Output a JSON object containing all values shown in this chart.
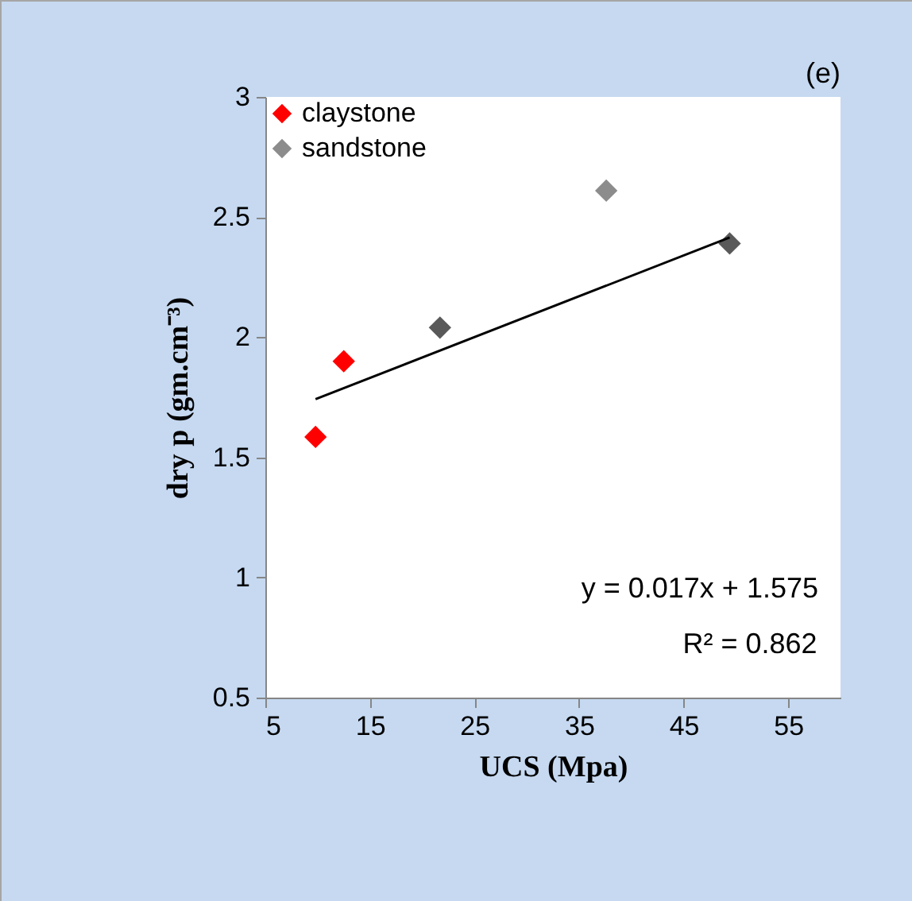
{
  "chart_data": {
    "type": "scatter",
    "xlabel": "UCS (Mpa)",
    "ylabel": "dry p (gm.cm⁻³)",
    "xlim": [
      5,
      60
    ],
    "xticks": [
      5,
      15,
      25,
      35,
      45,
      55
    ],
    "ylim": [
      0.5,
      3
    ],
    "yticks": [
      0.5,
      1,
      1.5,
      2,
      2.5,
      3
    ],
    "grid": false,
    "legend": "top left",
    "marker": "diamond",
    "annotations": [
      "(e)",
      "y = 0.017x + 1.575",
      "R² = 0.862"
    ],
    "series": [
      {
        "name": "claystone",
        "color": "#ff0000",
        "x": [
          9.8,
          12.5
        ],
        "values": [
          1.585,
          1.9
        ]
      },
      {
        "name": "sandstone",
        "color": "#8c8c8c",
        "x": [
          37.6
        ],
        "values": [
          2.61
        ]
      },
      {
        "color": "#595959",
        "x": [
          21.7,
          49.4
        ],
        "values": [
          2.04,
          2.39
        ]
      },
      {
        "type": "line",
        "marker": "none",
        "color": "#000000",
        "x": [
          9.8,
          49.4
        ],
        "values": [
          1.742,
          2.415
        ]
      }
    ]
  }
}
